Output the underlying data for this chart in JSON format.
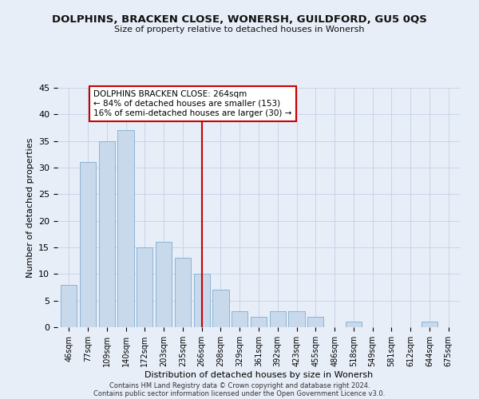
{
  "title": "DOLPHINS, BRACKEN CLOSE, WONERSH, GUILDFORD, GU5 0QS",
  "subtitle": "Size of property relative to detached houses in Wonersh",
  "xlabel": "Distribution of detached houses by size in Wonersh",
  "ylabel": "Number of detached properties",
  "bar_labels": [
    "46sqm",
    "77sqm",
    "109sqm",
    "140sqm",
    "172sqm",
    "203sqm",
    "235sqm",
    "266sqm",
    "298sqm",
    "329sqm",
    "361sqm",
    "392sqm",
    "423sqm",
    "455sqm",
    "486sqm",
    "518sqm",
    "549sqm",
    "581sqm",
    "612sqm",
    "644sqm",
    "675sqm"
  ],
  "bar_values": [
    8,
    31,
    35,
    37,
    15,
    16,
    13,
    10,
    7,
    3,
    2,
    3,
    3,
    2,
    0,
    1,
    0,
    0,
    0,
    1,
    0
  ],
  "bar_color": "#c9d9ec",
  "bar_edge_color": "#8ab4d4",
  "reference_line_x": 7.0,
  "annotation_title": "DOLPHINS BRACKEN CLOSE: 264sqm",
  "annotation_line1": "← 84% of detached houses are smaller (153)",
  "annotation_line2": "16% of semi-detached houses are larger (30) →",
  "annotation_box_color": "#ffffff",
  "annotation_box_edge": "#cc0000",
  "vline_color": "#cc0000",
  "ylim": [
    0,
    45
  ],
  "yticks": [
    0,
    5,
    10,
    15,
    20,
    25,
    30,
    35,
    40,
    45
  ],
  "grid_color": "#c8d4e8",
  "background_color": "#e8eef8",
  "footer_line1": "Contains HM Land Registry data © Crown copyright and database right 2024.",
  "footer_line2": "Contains public sector information licensed under the Open Government Licence v3.0."
}
